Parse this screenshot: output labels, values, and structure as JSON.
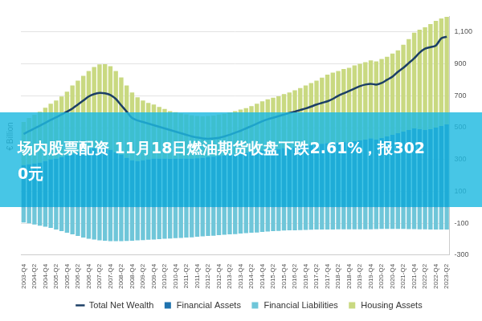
{
  "chart_data": {
    "type": "bar",
    "title": "场内股票配资 11月18日燃油期货收盘下跌2.61%，报3020元",
    "ylabel": "€ Billion",
    "categories": [
      "2003-Q4",
      null,
      "2004-Q2",
      null,
      "2004-Q4",
      null,
      "2005-Q2",
      null,
      "2005-Q4",
      null,
      "2006-Q2",
      null,
      "2006-Q4",
      null,
      "2007-Q2",
      null,
      "2007-Q4",
      null,
      "2008-Q2",
      null,
      "2008-Q4",
      null,
      "2009-Q2",
      null,
      "2009-Q4",
      null,
      "2010-Q2",
      null,
      "2010-Q4",
      null,
      "2011-Q2",
      null,
      "2011-Q4",
      null,
      "2012-Q2",
      null,
      "2012-Q4",
      null,
      "2013-Q2",
      null,
      "2013-Q4",
      null,
      "2014-Q2",
      null,
      "2014-Q4",
      null,
      "2015-Q2",
      null,
      "2015-Q4",
      null,
      "2016-Q2",
      null,
      "2016-Q4",
      null,
      "2017-Q2",
      null,
      "2017-Q4",
      null,
      "2018-Q2",
      null,
      "2018-Q4",
      null,
      "2019-Q2",
      null,
      "2019-Q4",
      null,
      "2020-Q2",
      null,
      "2020-Q4",
      null,
      "2021-Q2",
      null,
      "2021-Q4",
      null,
      "2022-Q2",
      null,
      "2022-Q4",
      null,
      "2023-Q2"
    ],
    "series": [
      {
        "name": "Financial Assets",
        "type": "bar",
        "color": "#1f72ae",
        "values": [
          265,
          270,
          275,
          280,
          290,
          300,
          305,
          315,
          325,
          335,
          345,
          355,
          365,
          370,
          372,
          368,
          360,
          345,
          330,
          310,
          295,
          290,
          295,
          300,
          305,
          305,
          305,
          303,
          305,
          305,
          305,
          305,
          308,
          310,
          315,
          318,
          322,
          325,
          330,
          333,
          338,
          342,
          345,
          350,
          355,
          360,
          362,
          365,
          370,
          372,
          376,
          380,
          385,
          390,
          395,
          398,
          402,
          405,
          405,
          408,
          405,
          415,
          420,
          425,
          432,
          425,
          435,
          445,
          455,
          465,
          475,
          485,
          495,
          490,
          485,
          490,
          500,
          510,
          520
        ]
      },
      {
        "name": "Financial Liabilities",
        "type": "bar",
        "color": "#6fc6d9",
        "values": [
          -95,
          -100,
          -108,
          -115,
          -122,
          -130,
          -140,
          -150,
          -160,
          -170,
          -180,
          -190,
          -198,
          -203,
          -207,
          -210,
          -212,
          -213,
          -212,
          -211,
          -210,
          -208,
          -206,
          -204,
          -202,
          -200,
          -198,
          -196,
          -194,
          -192,
          -190,
          -188,
          -185,
          -182,
          -180,
          -178,
          -175,
          -172,
          -170,
          -168,
          -165,
          -162,
          -160,
          -158,
          -155,
          -152,
          -150,
          -148,
          -146,
          -145,
          -144,
          -143,
          -142,
          -141,
          -140,
          -140,
          -139,
          -139,
          -138,
          -138,
          -138,
          -138,
          -138,
          -138,
          -138,
          -137,
          -136,
          -136,
          -136,
          -136,
          -136,
          -137,
          -137,
          -138,
          -138,
          -139,
          -139,
          -140,
          -140
        ]
      },
      {
        "name": "Housing Assets",
        "type": "bar",
        "color": "#c9d981",
        "values": [
          270,
          290,
          305,
          320,
          335,
          350,
          365,
          380,
          400,
          430,
          450,
          470,
          490,
          510,
          525,
          530,
          525,
          510,
          485,
          455,
          425,
          400,
          375,
          355,
          340,
          325,
          312,
          300,
          292,
          285,
          278,
          272,
          265,
          260,
          258,
          258,
          260,
          262,
          266,
          270,
          275,
          280,
          290,
          300,
          310,
          318,
          325,
          332,
          340,
          348,
          358,
          368,
          380,
          390,
          400,
          415,
          430,
          440,
          450,
          460,
          470,
          475,
          480,
          485,
          490,
          490,
          495,
          500,
          510,
          520,
          545,
          570,
          600,
          625,
          645,
          660,
          670,
          675,
          675
        ]
      },
      {
        "name": "Total Net Wealth",
        "type": "line",
        "color": "#1c3f66",
        "values": [
          460,
          478,
          495,
          512,
          530,
          548,
          565,
          582,
          600,
          620,
          645,
          670,
          695,
          710,
          718,
          715,
          705,
          680,
          640,
          600,
          560,
          545,
          535,
          525,
          515,
          505,
          495,
          485,
          475,
          465,
          455,
          445,
          438,
          432,
          430,
          432,
          436,
          445,
          455,
          468,
          480,
          495,
          510,
          525,
          540,
          552,
          562,
          572,
          582,
          592,
          600,
          610,
          620,
          632,
          645,
          655,
          665,
          680,
          700,
          715,
          730,
          745,
          760,
          770,
          775,
          770,
          780,
          800,
          820,
          850,
          875,
          905,
          935,
          970,
          995,
          1005,
          1015,
          1060,
          1070
        ]
      }
    ],
    "ylim": [
      -300,
      1200
    ],
    "yticks": [
      -300,
      -100,
      100,
      300,
      500,
      700,
      900,
      {
        "value": 1100,
        "label": "1,100"
      }
    ],
    "stacked": true,
    "grid": true,
    "legend": "bottom"
  }
}
